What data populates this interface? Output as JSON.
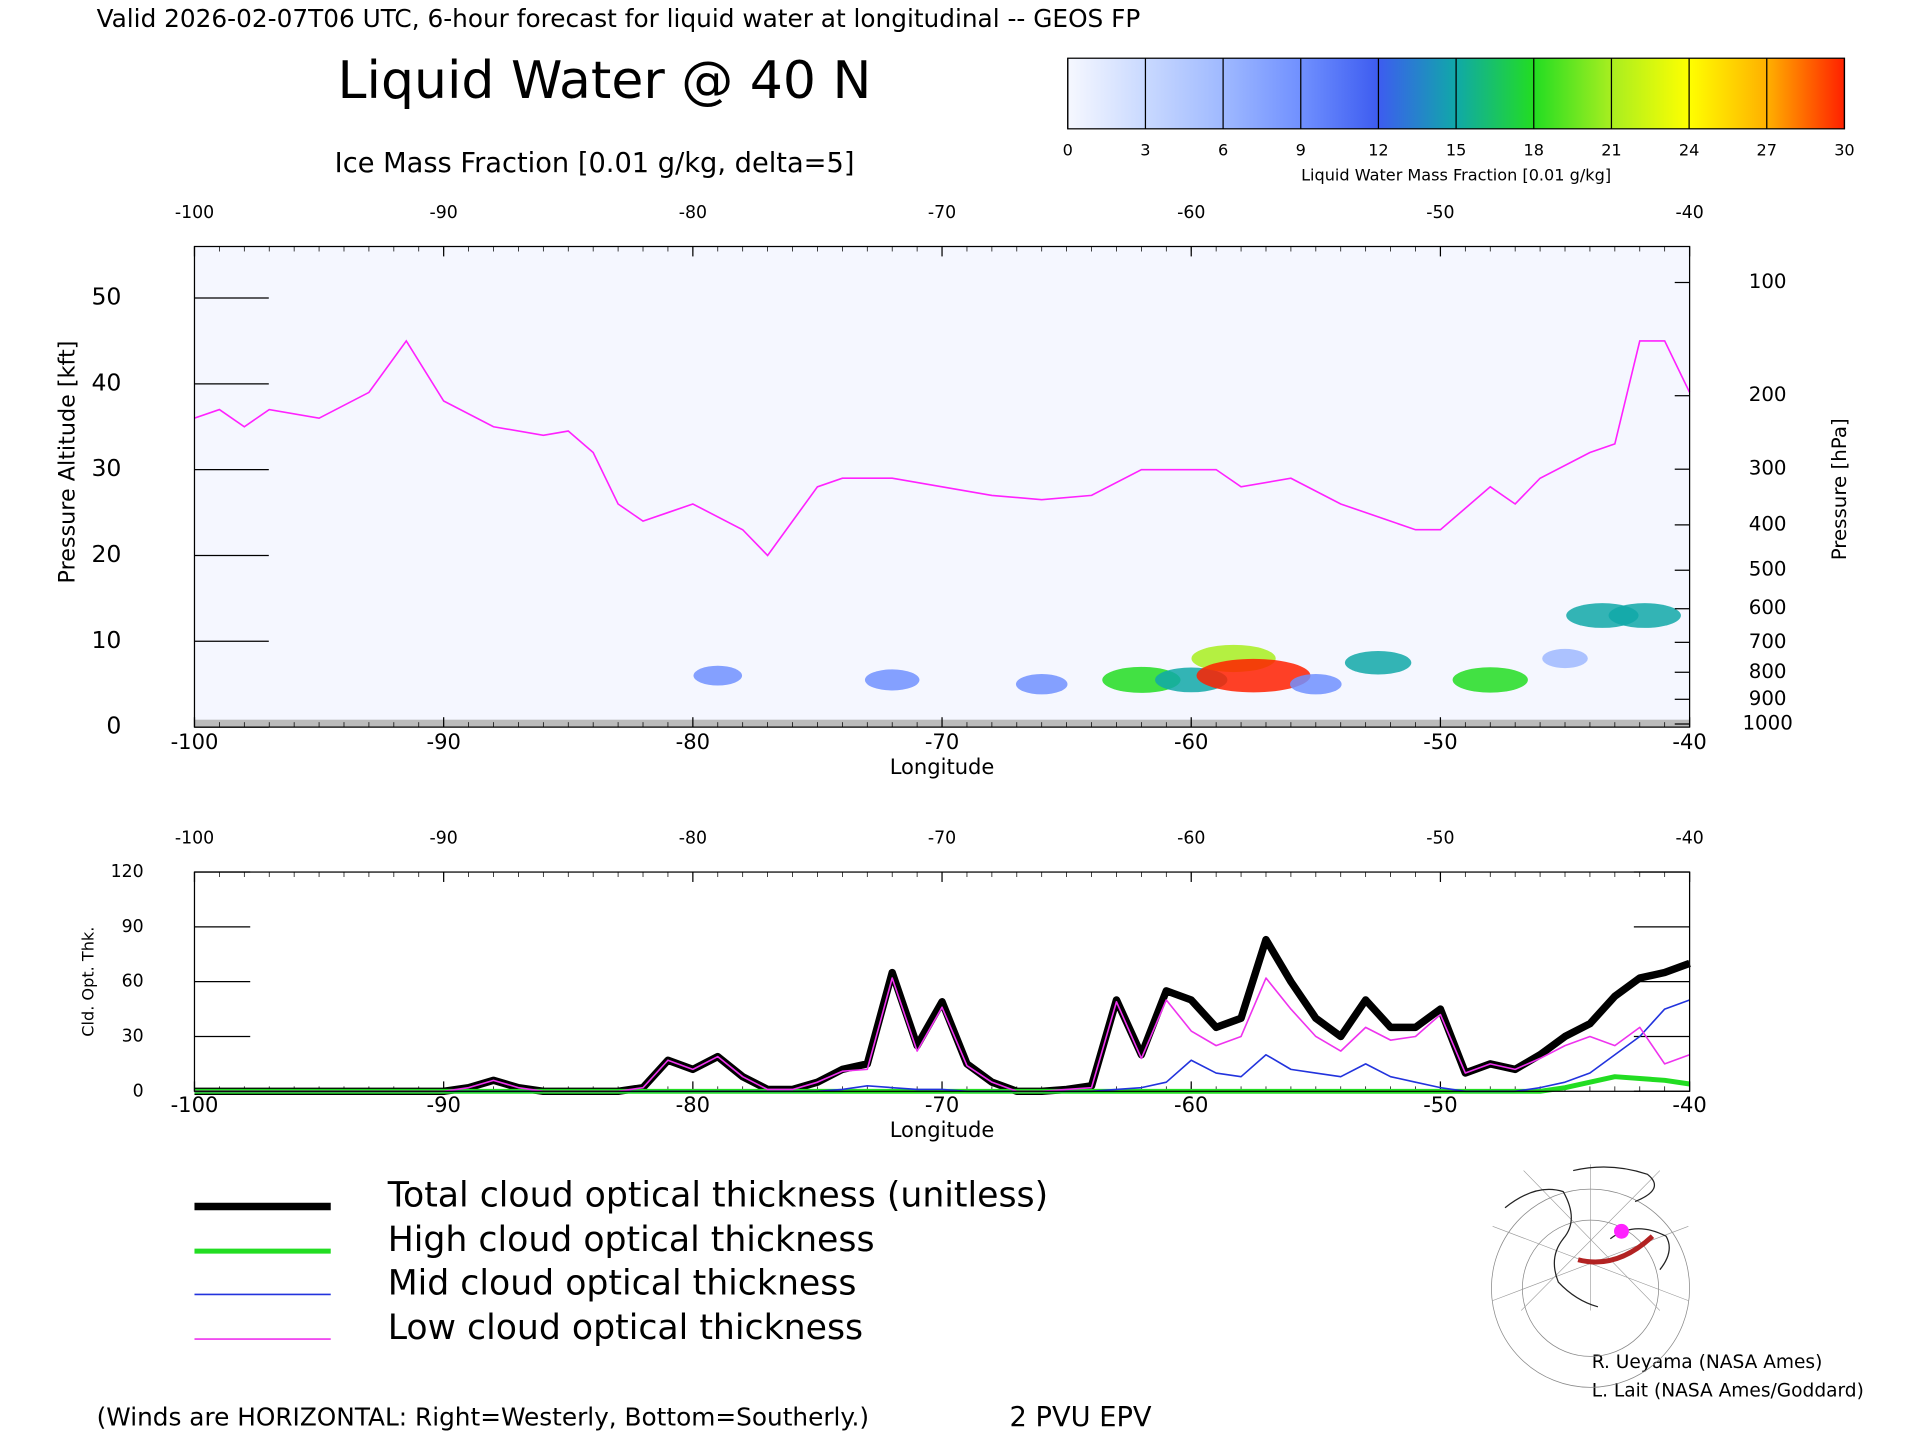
{
  "header": "Valid 2026-02-07T06 UTC, 6-hour forecast for liquid water at longitudinal -- GEOS FP",
  "credits": [
    "R. Ueyama (NASA Ames)",
    "L. Lait (NASA Ames/Goddard)"
  ],
  "chart_data": [
    {
      "type": "cross-section",
      "title": "Liquid Water @ 40 N",
      "subtitle": "Ice Mass Fraction [0.01 g/kg, delta=5]",
      "xlabel": "Longitude",
      "ylabel": "Pressure Altitude [kft]",
      "y2label": "Pressure [hPa]",
      "note": "(Winds are HORIZONTAL: Right=Westerly, Bottom=Southerly.)",
      "xlim": [
        -100,
        -40
      ],
      "xticks": [
        -100,
        -90,
        -80,
        -70,
        -60,
        -50,
        -40
      ],
      "ylim": [
        0,
        56
      ],
      "yticks": [
        0,
        10,
        20,
        30,
        40,
        50
      ],
      "y2scale": "standard-atmosphere",
      "y2ticks": [
        100,
        200,
        300,
        400,
        500,
        600,
        700,
        800,
        900,
        1000
      ],
      "colorbar": {
        "label": "Liquid Water Mass Fraction [0.01 g/kg]",
        "lim": [
          0,
          30
        ],
        "ticks": [
          0,
          3,
          6,
          9,
          12,
          15,
          18,
          21,
          24,
          27,
          30
        ],
        "colors": [
          "#f6f8ff",
          "#c9d9ff",
          "#9fb9ff",
          "#7090ff",
          "#3d5cf0",
          "#10a8a8",
          "#22dd22",
          "#a8ee20",
          "#ffff00",
          "#ffb000",
          "#ff2000"
        ]
      },
      "points": [
        {
          "x": -79,
          "y": 6,
          "value": 8
        },
        {
          "x": -72,
          "y": 5.5,
          "value": 10
        },
        {
          "x": -66,
          "y": 5,
          "value": 9
        },
        {
          "x": -62,
          "y": 5.5,
          "value": 18
        },
        {
          "x": -60,
          "y": 5.5,
          "value": 16
        },
        {
          "x": -58.3,
          "y": 8,
          "value": 20
        },
        {
          "x": -57.5,
          "y": 6,
          "value": 30
        },
        {
          "x": -55,
          "y": 5,
          "value": 9
        },
        {
          "x": -52.5,
          "y": 7.5,
          "value": 14
        },
        {
          "x": -48,
          "y": 5.5,
          "value": 17
        },
        {
          "x": -45,
          "y": 8,
          "value": 7
        },
        {
          "x": -43.5,
          "y": 13,
          "value": 16
        },
        {
          "x": -41.8,
          "y": 13,
          "value": 16
        }
      ],
      "series": [
        {
          "name": "2 PVU EPV",
          "color": "#ff22ff",
          "x": [
            -100,
            -99,
            -98,
            -97,
            -95,
            -93,
            -91.5,
            -90,
            -88,
            -86,
            -85,
            -84,
            -83,
            -82,
            -81,
            -80,
            -78,
            -77,
            -76,
            -75,
            -74,
            -72,
            -70,
            -68,
            -66,
            -64,
            -62,
            -60,
            -59,
            -58,
            -56,
            -54,
            -52,
            -51,
            -50,
            -48,
            -47,
            -46,
            -44,
            -43,
            -42,
            -41,
            -40
          ],
          "values": [
            36,
            37,
            35,
            37,
            36,
            39,
            45,
            38,
            35,
            34,
            34.5,
            32,
            26,
            24,
            25,
            26,
            23,
            20,
            24,
            28,
            29,
            29,
            28,
            27,
            26.5,
            27,
            30,
            30,
            30,
            28,
            29,
            26,
            24,
            23,
            23,
            28,
            26,
            29,
            32,
            33,
            45,
            45,
            39
          ]
        }
      ]
    },
    {
      "type": "line",
      "ylabel": "Cld. Opt. Thk.",
      "xlabel": "Longitude",
      "xlim": [
        -100,
        -40
      ],
      "xticks": [
        -100,
        -90,
        -80,
        -70,
        -60,
        -50,
        -40
      ],
      "ylim": [
        0,
        120
      ],
      "yticks": [
        0,
        30,
        60,
        90,
        120
      ],
      "x": [
        -100,
        -99,
        -98,
        -97,
        -96,
        -95,
        -94,
        -93,
        -92,
        -91,
        -90,
        -89,
        -88,
        -87,
        -86,
        -85,
        -84,
        -83,
        -82,
        -81,
        -80,
        -79,
        -78,
        -77,
        -76,
        -75,
        -74,
        -73,
        -72,
        -71,
        -70,
        -69,
        -68,
        -67,
        -66,
        -65,
        -64,
        -63,
        -62,
        -61,
        -60,
        -59,
        -58,
        -57,
        -56,
        -55,
        -54,
        -53,
        -52,
        -51,
        -50,
        -49,
        -48,
        -47,
        -46,
        -45,
        -44,
        -43,
        -42,
        -41,
        -40
      ],
      "series": [
        {
          "name": "Total cloud optical thickness (unitless)",
          "color": "#000000",
          "values": [
            0,
            0,
            0,
            0,
            0,
            0,
            0,
            0,
            0,
            0,
            0,
            2,
            6,
            2,
            0,
            0,
            0,
            0,
            2,
            17,
            12,
            19,
            8,
            1,
            1,
            5,
            12,
            15,
            65,
            25,
            49,
            15,
            5,
            0,
            0,
            1,
            3,
            50,
            20,
            55,
            50,
            35,
            40,
            83,
            60,
            40,
            30,
            50,
            35,
            35,
            45,
            10,
            15,
            12,
            20,
            30,
            37,
            52,
            62,
            65,
            70
          ]
        },
        {
          "name": "High cloud optical thickness",
          "color": "#22dd22",
          "values": [
            0,
            0,
            0,
            0,
            0,
            0,
            0,
            0,
            0,
            0,
            0,
            0,
            0,
            0,
            0,
            0,
            0,
            0,
            0,
            0,
            0,
            0,
            0,
            0,
            0,
            0,
            0,
            0,
            0,
            0,
            0,
            0,
            0,
            0,
            0,
            0,
            0,
            0,
            0,
            0,
            0,
            0,
            0,
            0,
            0,
            0,
            0,
            0,
            0,
            0,
            0,
            0,
            0,
            0,
            0,
            2,
            5,
            8,
            7,
            6,
            4
          ]
        },
        {
          "name": "Mid cloud optical thickness",
          "color": "#2233dd",
          "values": [
            0,
            0,
            0,
            0,
            0,
            0,
            0,
            0,
            0,
            0,
            0,
            0,
            0,
            0,
            0,
            0,
            0,
            0,
            0,
            0,
            0,
            0,
            0,
            0,
            0,
            0,
            1,
            3,
            2,
            1,
            1,
            0,
            0,
            0,
            0,
            0,
            0,
            1,
            2,
            5,
            17,
            10,
            8,
            20,
            12,
            10,
            8,
            15,
            8,
            5,
            2,
            0,
            0,
            0,
            2,
            5,
            10,
            20,
            30,
            45,
            50
          ]
        },
        {
          "name": "Low cloud optical thickness",
          "color": "#ee33ee",
          "values": [
            0,
            0,
            0,
            0,
            0,
            0,
            0,
            0,
            0,
            0,
            0,
            2,
            6,
            2,
            0,
            0,
            0,
            0,
            2,
            17,
            12,
            19,
            8,
            1,
            1,
            5,
            11,
            12,
            62,
            22,
            46,
            14,
            5,
            0,
            0,
            1,
            2,
            49,
            18,
            50,
            33,
            25,
            30,
            62,
            45,
            30,
            22,
            35,
            28,
            30,
            42,
            10,
            15,
            12,
            18,
            25,
            30,
            25,
            35,
            15,
            20
          ]
        }
      ]
    }
  ]
}
